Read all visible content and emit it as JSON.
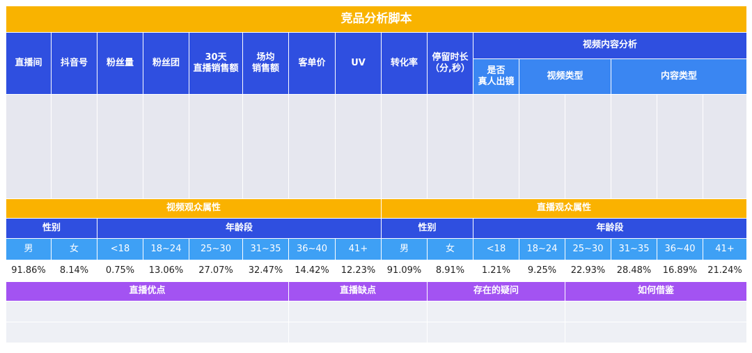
{
  "title": "竞品分析脚本",
  "header": {
    "columns": [
      "直播间",
      "抖音号",
      "粉丝量",
      "粉丝团",
      "30天\n直播销售额",
      "场均\n销售额",
      "客单价",
      "UV",
      "转化率",
      "停留时长\n（分,秒）"
    ],
    "video_content": "视频内容分析",
    "real_person": "是否\n真人出镜",
    "video_type": "视频类型",
    "content_type": "内容类型"
  },
  "audience": {
    "video": {
      "title": "视频观众属性",
      "gender_label": "性别",
      "age_label": "年龄段",
      "categories": [
        "男",
        "女",
        "<18",
        "18~24",
        "25~30",
        "31~35",
        "36~40",
        "41+"
      ],
      "values": [
        "91.86%",
        "8.14%",
        "0.75%",
        "13.06%",
        "27.07%",
        "32.47%",
        "14.42%",
        "12.23%"
      ]
    },
    "live": {
      "title": "直播观众属性",
      "gender_label": "性别",
      "age_label": "年龄段",
      "categories": [
        "男",
        "女",
        "<18",
        "18~24",
        "25~30",
        "31~35",
        "36~40",
        "41+"
      ],
      "values": [
        "91.09%",
        "8.91%",
        "1.21%",
        "9.25%",
        "22.93%",
        "28.48%",
        "16.89%",
        "21.24%"
      ]
    }
  },
  "review": {
    "pros": "直播优点",
    "cons": "直播缺点",
    "questions": "存在的疑问",
    "learn": "如何借鉴"
  }
}
